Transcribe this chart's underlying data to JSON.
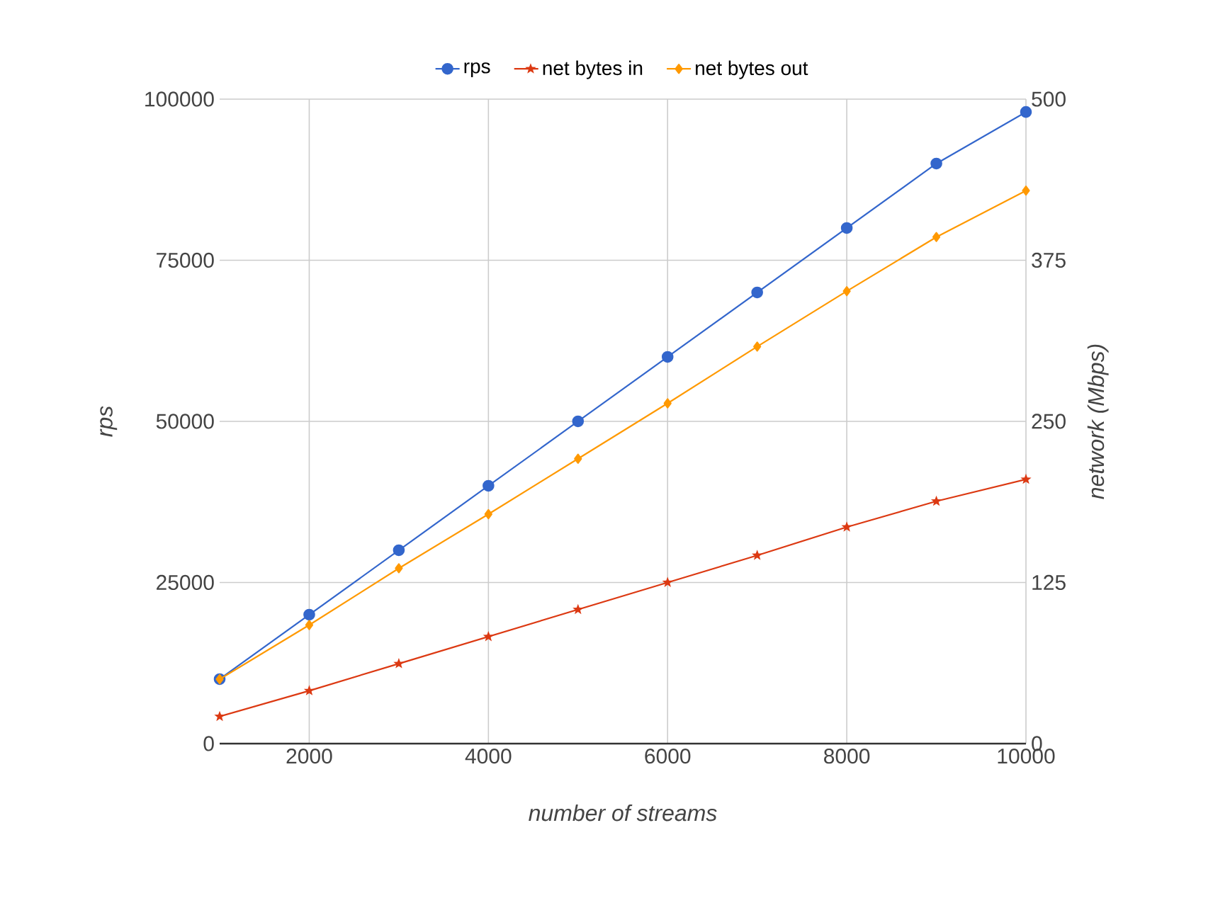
{
  "chart_data": {
    "type": "line",
    "xlabel": "number of streams",
    "ylabel": "rps",
    "y2label": "network (Mbps)",
    "x": [
      1000,
      2000,
      3000,
      4000,
      5000,
      6000,
      7000,
      8000,
      9000,
      10000
    ],
    "series": [
      {
        "name": "rps",
        "color": "#3366cc",
        "marker": "circle",
        "values": [
          10000,
          20000,
          30000,
          40000,
          50000,
          60000,
          70000,
          80000,
          90000,
          98000
        ]
      },
      {
        "name": "net bytes in",
        "color": "#dc3912",
        "marker": "star",
        "axis": "y2",
        "values": [
          21,
          41,
          62,
          83,
          104,
          125,
          146,
          168,
          188,
          205
        ]
      },
      {
        "name": "net bytes out",
        "color": "#ff9900",
        "marker": "diamond",
        "axis": "y2",
        "values": [
          50,
          92,
          136,
          178,
          221,
          264,
          308,
          351,
          393,
          429
        ]
      }
    ],
    "xlim": [
      1000,
      10000
    ],
    "xticks": [
      2000,
      4000,
      6000,
      8000,
      10000
    ],
    "ylim": [
      0,
      100000
    ],
    "yticks": [
      0,
      25000,
      50000,
      75000,
      100000
    ],
    "y2lim": [
      0,
      500
    ],
    "y2ticks": [
      0,
      125,
      250,
      375,
      500
    ],
    "grid": true,
    "legend": "top"
  }
}
